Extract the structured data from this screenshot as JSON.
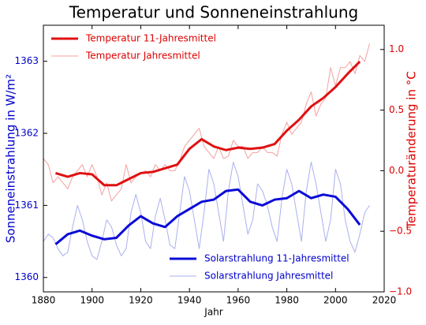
{
  "chart_data": {
    "type": "line",
    "title": "Temperatur und Sonneneinstrahlung",
    "xlabel": "Jahr",
    "ylabel": "Sonneneinstrahlung in W/m²",
    "y2label": "Temperaturänderung in °C",
    "xlim": [
      1880,
      2020
    ],
    "xticks": [
      1880,
      1900,
      1920,
      1940,
      1960,
      1980,
      2000,
      2020
    ],
    "ylim": [
      1359.8,
      1363.5
    ],
    "yticks": [
      1360,
      1361,
      1362,
      1363
    ],
    "y2lim": [
      -1.0,
      1.2
    ],
    "y2ticks": [
      {
        "value": -1.0,
        "label": "−1.0"
      },
      {
        "value": -0.5,
        "label": "−0.5"
      },
      {
        "value": 0.0,
        "label": "0.0"
      },
      0.5,
      {
        "value": 1.0,
        "label": "1.0"
      }
    ],
    "ycolor": "#0000cc",
    "y2color": "#dd0000",
    "legend": {
      "y2": "upper left",
      "y": "lower right"
    },
    "series": [
      {
        "name": "Temperatur 11-Jahresmittel",
        "color": "#e01010",
        "width": 3,
        "axis": "y2",
        "x": [
          1885,
          1890,
          1895,
          1900,
          1905,
          1910,
          1915,
          1920,
          1925,
          1930,
          1935,
          1940,
          1945,
          1950,
          1955,
          1960,
          1965,
          1970,
          1975,
          1980,
          1985,
          1990,
          1995,
          2000,
          2005,
          2010
        ],
        "values": [
          -0.02,
          -0.05,
          -0.02,
          -0.03,
          -0.12,
          -0.12,
          -0.07,
          -0.02,
          -0.01,
          0.02,
          0.05,
          0.18,
          0.26,
          0.2,
          0.17,
          0.19,
          0.18,
          0.19,
          0.22,
          0.33,
          0.42,
          0.53,
          0.6,
          0.69,
          0.8,
          0.9
        ]
      },
      {
        "name": "Temperatur Jahresmittel",
        "color": "#f4a0a0",
        "width": 1,
        "axis": "y2",
        "x": [
          1880,
          1882,
          1884,
          1886,
          1888,
          1890,
          1892,
          1894,
          1896,
          1898,
          1900,
          1902,
          1904,
          1906,
          1908,
          1910,
          1912,
          1914,
          1916,
          1918,
          1920,
          1922,
          1924,
          1926,
          1928,
          1930,
          1932,
          1934,
          1936,
          1938,
          1940,
          1942,
          1944,
          1946,
          1948,
          1950,
          1952,
          1954,
          1956,
          1958,
          1960,
          1962,
          1964,
          1966,
          1968,
          1970,
          1972,
          1974,
          1976,
          1978,
          1980,
          1982,
          1984,
          1986,
          1988,
          1990,
          1992,
          1994,
          1996,
          1998,
          2000,
          2002,
          2004,
          2006,
          2008,
          2010,
          2012,
          2014
        ],
        "values": [
          0.1,
          0.05,
          -0.1,
          -0.05,
          -0.1,
          -0.15,
          -0.05,
          0.0,
          0.05,
          -0.05,
          0.05,
          -0.05,
          -0.2,
          -0.1,
          -0.25,
          -0.2,
          -0.15,
          0.05,
          -0.1,
          -0.05,
          -0.02,
          0.0,
          -0.05,
          0.05,
          0.0,
          0.05,
          0.0,
          0.0,
          0.08,
          0.2,
          0.25,
          0.3,
          0.35,
          0.2,
          0.15,
          0.1,
          0.2,
          0.1,
          0.12,
          0.25,
          0.2,
          0.2,
          0.1,
          0.15,
          0.15,
          0.2,
          0.15,
          0.15,
          0.12,
          0.3,
          0.4,
          0.3,
          0.35,
          0.4,
          0.55,
          0.65,
          0.45,
          0.55,
          0.6,
          0.85,
          0.7,
          0.85,
          0.85,
          0.9,
          0.8,
          0.95,
          0.9,
          1.05
        ]
      },
      {
        "name": "Solarstrahlung 11-Jahresmittel",
        "color": "#0a0ad8",
        "width": 3,
        "axis": "y",
        "x": [
          1885,
          1890,
          1895,
          1900,
          1905,
          1910,
          1915,
          1920,
          1925,
          1930,
          1935,
          1940,
          1945,
          1950,
          1955,
          1960,
          1965,
          1970,
          1975,
          1980,
          1985,
          1990,
          1995,
          2000,
          2005,
          2010
        ],
        "values": [
          1360.46,
          1360.6,
          1360.65,
          1360.58,
          1360.53,
          1360.55,
          1360.72,
          1360.85,
          1360.75,
          1360.7,
          1360.85,
          1360.95,
          1361.05,
          1361.08,
          1361.2,
          1361.22,
          1361.05,
          1361.0,
          1361.08,
          1361.1,
          1361.2,
          1361.1,
          1361.15,
          1361.12,
          1360.95,
          1360.73
        ]
      },
      {
        "name": "Solarstrahlung Jahresmittel",
        "color": "#aab0ee",
        "width": 1,
        "axis": "y",
        "x": [
          1880,
          1882,
          1884,
          1886,
          1888,
          1890,
          1892,
          1894,
          1896,
          1898,
          1900,
          1902,
          1904,
          1906,
          1908,
          1910,
          1912,
          1914,
          1916,
          1918,
          1920,
          1922,
          1924,
          1926,
          1928,
          1930,
          1932,
          1934,
          1936,
          1938,
          1940,
          1942,
          1944,
          1946,
          1948,
          1950,
          1952,
          1954,
          1956,
          1958,
          1960,
          1962,
          1964,
          1966,
          1968,
          1970,
          1972,
          1974,
          1976,
          1978,
          1980,
          1982,
          1984,
          1986,
          1988,
          1990,
          1992,
          1994,
          1996,
          1998,
          2000,
          2002,
          2004,
          2006,
          2008,
          2010,
          2012,
          2014
        ],
        "values": [
          1360.5,
          1360.6,
          1360.55,
          1360.4,
          1360.3,
          1360.35,
          1360.7,
          1361.0,
          1360.8,
          1360.5,
          1360.3,
          1360.25,
          1360.5,
          1360.8,
          1360.7,
          1360.45,
          1360.3,
          1360.4,
          1360.9,
          1361.15,
          1360.9,
          1360.5,
          1360.4,
          1360.85,
          1361.1,
          1360.8,
          1360.45,
          1360.4,
          1360.9,
          1361.4,
          1361.2,
          1360.8,
          1360.4,
          1360.9,
          1361.5,
          1361.3,
          1360.9,
          1360.5,
          1361.2,
          1361.6,
          1361.4,
          1361.0,
          1360.6,
          1360.8,
          1361.3,
          1361.2,
          1361.0,
          1360.7,
          1360.5,
          1361.1,
          1361.5,
          1361.3,
          1360.9,
          1360.5,
          1361.2,
          1361.6,
          1361.3,
          1360.9,
          1360.5,
          1360.8,
          1361.5,
          1361.3,
          1360.8,
          1360.5,
          1360.35,
          1360.6,
          1360.9,
          1361.0
        ]
      }
    ]
  }
}
